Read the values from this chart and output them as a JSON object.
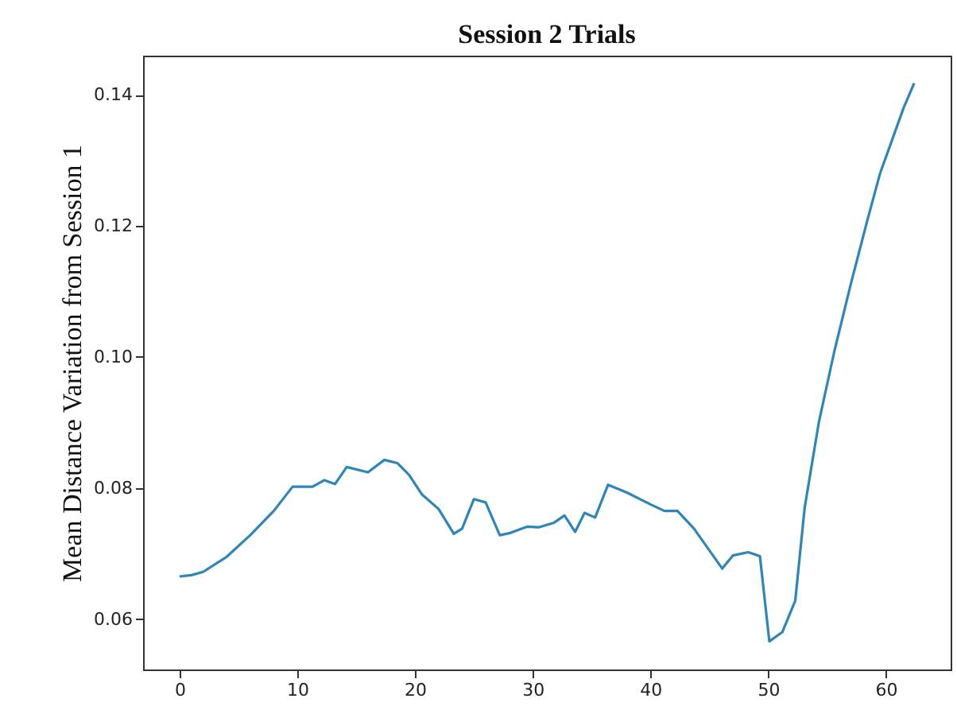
{
  "chart_data": {
    "type": "line",
    "title": "Session 2 Trials",
    "ylabel": "Mean Distance Variation from Session 1",
    "x": [
      0,
      1,
      2,
      4,
      6,
      8,
      9.6,
      11.3,
      12.3,
      13.2,
      14.2,
      16,
      17.4,
      18.5,
      19.5,
      20.6,
      22,
      23.3,
      24,
      25,
      26,
      27.2,
      28,
      29.5,
      30.5,
      31.8,
      32.7,
      33.6,
      34.4,
      35.3,
      36.4,
      38,
      40,
      41.2,
      42.3,
      43.7,
      46.1,
      47,
      48.3,
      49.3,
      50.1,
      51.2,
      52.3,
      53.1,
      54.3,
      55.6,
      57,
      58.4,
      59.5,
      60.5,
      61.5,
      62.4
    ],
    "series": [
      {
        "color": "#2e86b8",
        "values": [
          0.0665,
          0.0667,
          0.0672,
          0.0695,
          0.0728,
          0.0765,
          0.0802,
          0.0802,
          0.0812,
          0.0806,
          0.0832,
          0.0824,
          0.0843,
          0.0838,
          0.082,
          0.079,
          0.0768,
          0.073,
          0.0738,
          0.0783,
          0.0778,
          0.0728,
          0.0731,
          0.0741,
          0.074,
          0.0747,
          0.0758,
          0.0733,
          0.0762,
          0.0755,
          0.0805,
          0.0793,
          0.0775,
          0.0765,
          0.0765,
          0.0738,
          0.0677,
          0.0697,
          0.0702,
          0.0696,
          0.0566,
          0.058,
          0.0628,
          0.077,
          0.09,
          0.1007,
          0.111,
          0.1207,
          0.128,
          0.133,
          0.138,
          0.1418
        ]
      }
    ],
    "xlim": [
      -3.1,
      65.5
    ],
    "ylim": [
      0.0523,
      0.146
    ],
    "xticks": [
      0,
      10,
      20,
      30,
      40,
      50,
      60
    ],
    "yticks": [
      {
        "value": 0.06,
        "label": "0.06"
      },
      {
        "value": 0.08,
        "label": "0.08"
      },
      {
        "value": 0.1,
        "label": "0.10"
      },
      {
        "value": 0.12,
        "label": "0.12"
      },
      {
        "value": 0.14,
        "label": "0.14"
      }
    ],
    "grid": false,
    "line_style": "solid",
    "marker": "none"
  }
}
